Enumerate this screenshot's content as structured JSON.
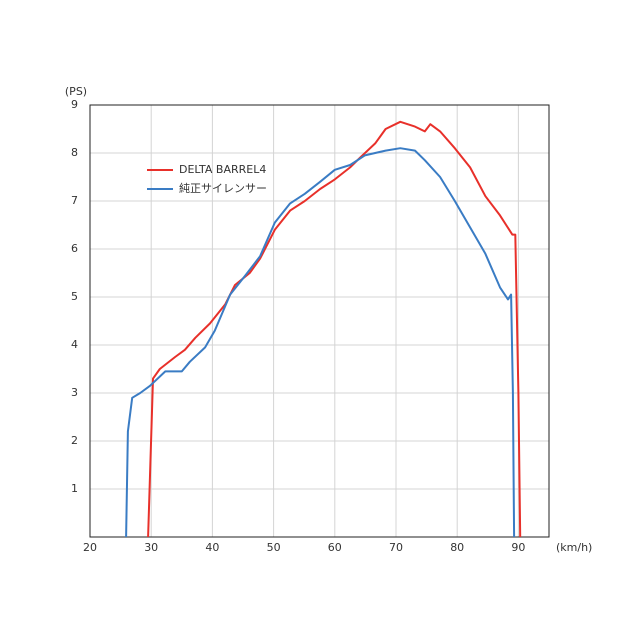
{
  "chart_data": {
    "type": "line",
    "y_label": "(PS)",
    "x_label": "(km/h)",
    "xlim": [
      20,
      95
    ],
    "xticks": [
      20,
      30,
      40,
      50,
      60,
      70,
      80,
      90
    ],
    "ylim": [
      0,
      9
    ],
    "yticks": [
      1,
      2,
      3,
      4,
      5,
      6,
      7,
      8,
      9
    ],
    "grid": true,
    "legend": "upper left",
    "series": [
      {
        "name": "DELTA BARREL4",
        "color": "#e8302a",
        "x": [
          29.5,
          30.3,
          31.4,
          33.9,
          35.5,
          37.2,
          39.6,
          42.1,
          43.7,
          46.1,
          47.8,
          50.2,
          52.7,
          55.1,
          57.6,
          60,
          62.5,
          64.1,
          66.6,
          68.3,
          70.7,
          73.1,
          74.7,
          75.6,
          77.2,
          79.6,
          82.1,
          84.6,
          87,
          89,
          89.5,
          90,
          90.3
        ],
        "values": [
          0,
          3.3,
          3.5,
          3.75,
          3.9,
          4.15,
          4.45,
          4.85,
          5.25,
          5.5,
          5.8,
          6.4,
          6.8,
          7.0,
          7.25,
          7.45,
          7.7,
          7.9,
          8.2,
          8.5,
          8.65,
          8.55,
          8.45,
          8.6,
          8.45,
          8.1,
          7.7,
          7.1,
          6.7,
          6.3,
          6.3,
          3,
          0
        ]
      },
      {
        "name": "純正サイレンサー",
        "color": "#3a7cc4",
        "x": [
          25.9,
          26.2,
          26.9,
          28.2,
          29.8,
          32.3,
          33.9,
          35,
          36.3,
          38.8,
          40.4,
          42.9,
          45.4,
          47.8,
          50.2,
          52.7,
          55.1,
          57.6,
          60,
          62.5,
          64.9,
          68.3,
          70.7,
          73.1,
          74.7,
          77.2,
          79.6,
          82.1,
          84.6,
          87,
          88.3,
          88.8,
          89.1,
          89.3
        ],
        "values": [
          0,
          2.2,
          2.9,
          3.0,
          3.15,
          3.45,
          3.45,
          3.45,
          3.65,
          3.95,
          4.3,
          5.05,
          5.45,
          5.85,
          6.55,
          6.95,
          7.15,
          7.4,
          7.65,
          7.75,
          7.95,
          8.05,
          8.1,
          8.05,
          7.85,
          7.5,
          7.0,
          6.45,
          5.9,
          5.2,
          4.95,
          5.05,
          3,
          0
        ]
      }
    ]
  }
}
